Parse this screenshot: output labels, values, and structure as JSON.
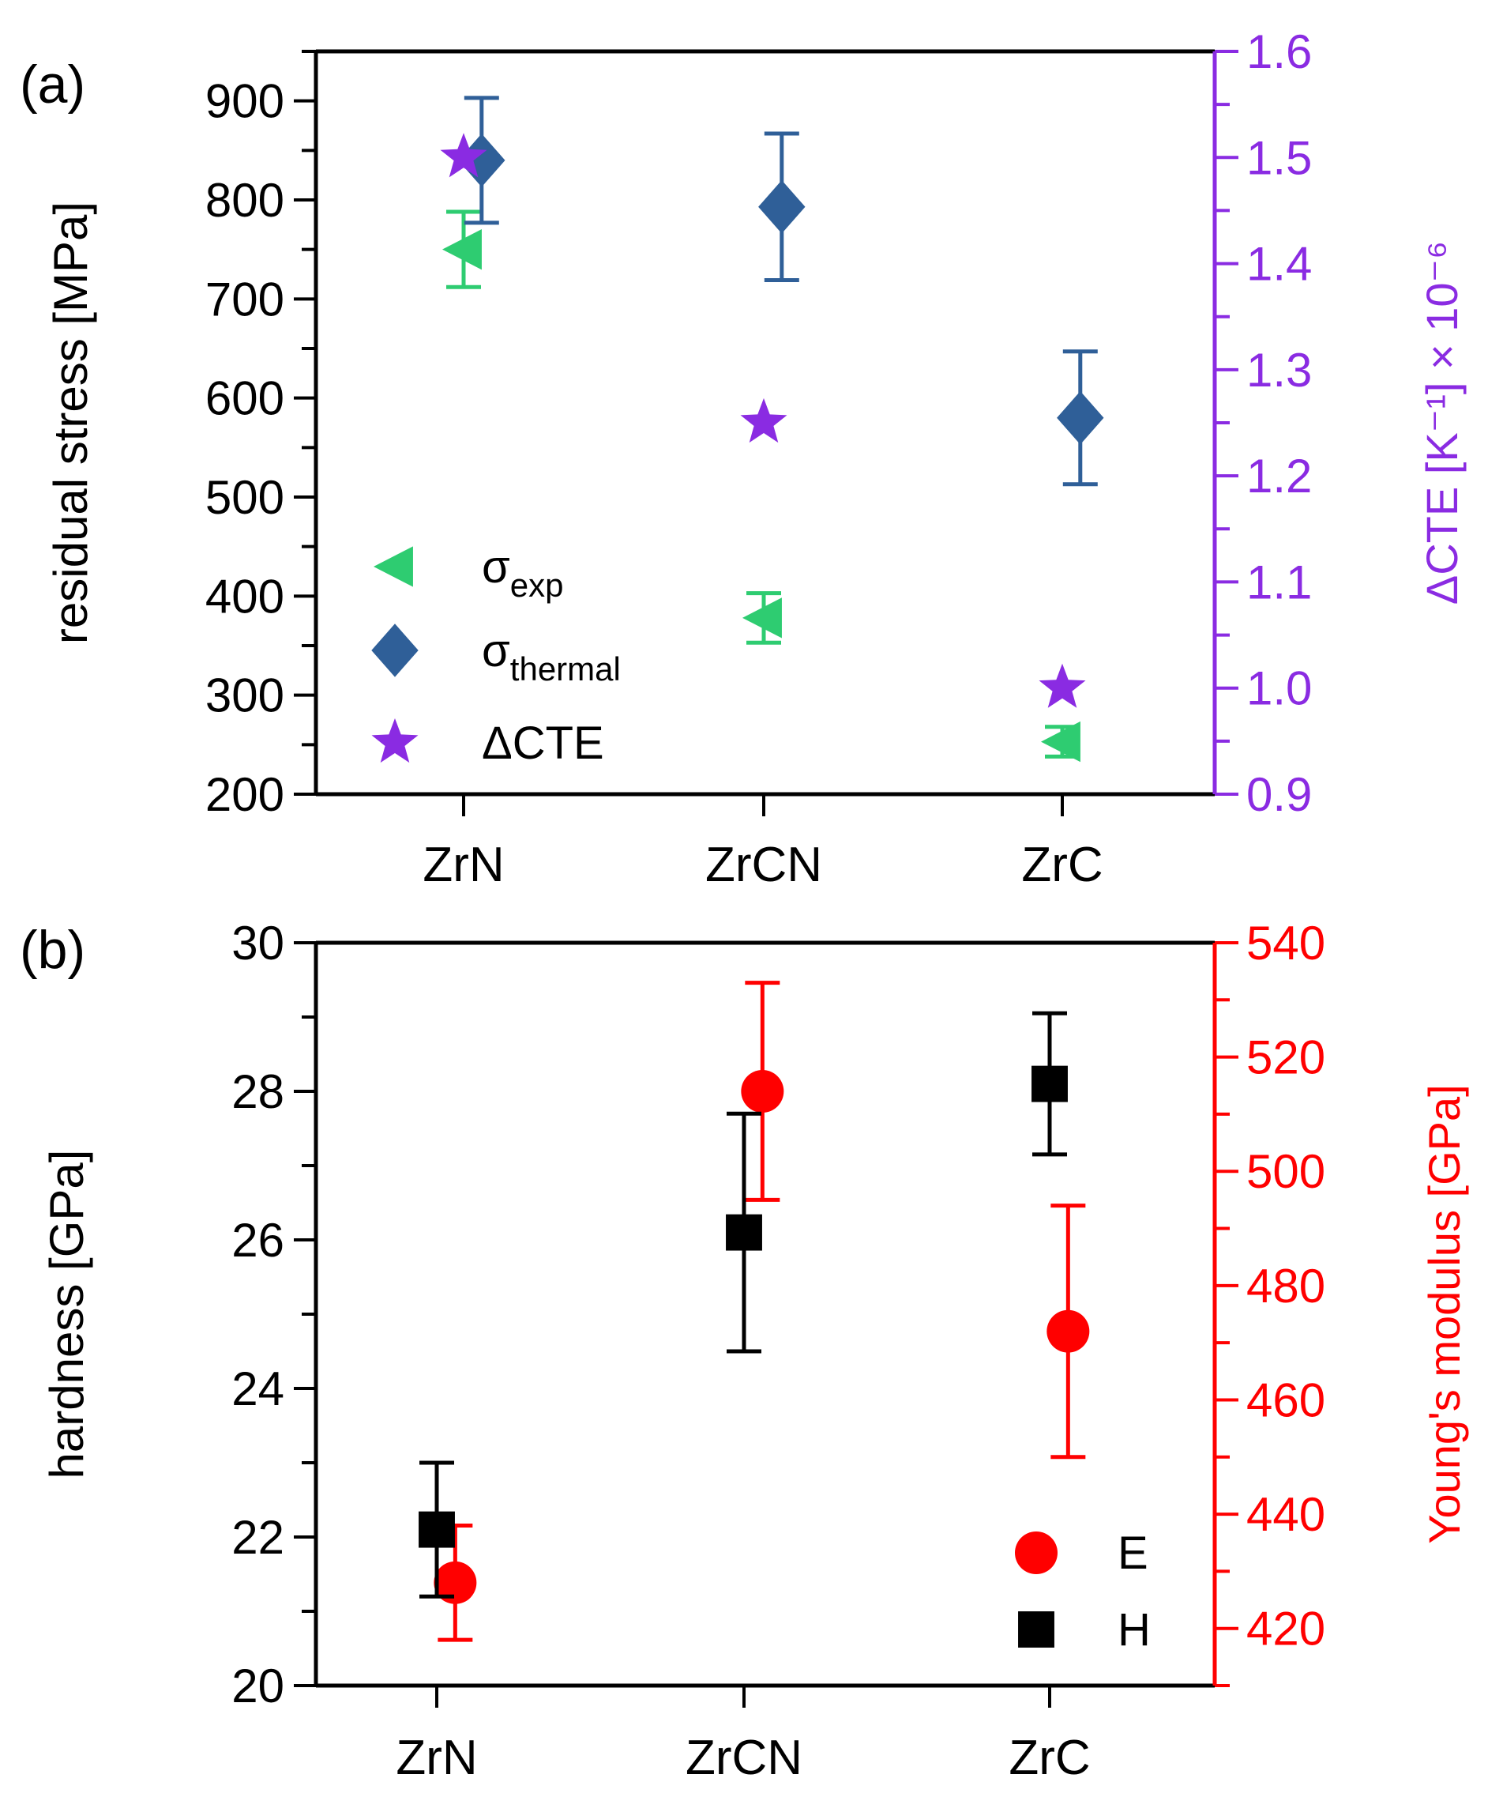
{
  "colors": {
    "axis": "#000000",
    "exp": "#2ECC71",
    "thermal": "#2F5F98",
    "cte": "#8A2BE2",
    "modulus": "#FF0000",
    "hardness": "#000000"
  },
  "chart_data": [
    {
      "type": "scatter",
      "panel_label": "(a)",
      "categories": [
        "ZrN",
        "ZrCN",
        "ZrC"
      ],
      "ylabel": "residual stress [MPa]",
      "ylim": [
        200,
        950
      ],
      "yticks": [
        "200",
        "300",
        "400",
        "500",
        "600",
        "700",
        "800",
        "900"
      ],
      "y2label": "ΔCTE [K⁻¹] × 10⁻⁶",
      "y2lim": [
        0.9,
        1.6
      ],
      "y2ticks": [
        "0.9",
        "1.0",
        "1.1",
        "1.2",
        "1.3",
        "1.4",
        "1.5",
        "1.6"
      ],
      "series": [
        {
          "name": "σexp",
          "sym": "σ",
          "sub": "exp",
          "axis": "left",
          "marker": "triangle-left",
          "color": "#2ECC71",
          "offset": 0,
          "values": [
            750,
            378,
            253
          ],
          "err": [
            38,
            25,
            15
          ]
        },
        {
          "name": "σthermal",
          "sym": "σ",
          "sub": "thermal",
          "axis": "left",
          "marker": "diamond",
          "color": "#2F5F98",
          "offset": 0.2,
          "values": [
            840,
            793,
            580
          ],
          "err": [
            63,
            74,
            67
          ]
        },
        {
          "name": "ΔCTE",
          "sym": "ΔCTE",
          "sub": "",
          "axis": "right",
          "marker": "star",
          "color": "#8A2BE2",
          "offset": 0,
          "values": [
            1.5,
            1.25,
            1.0
          ],
          "err": [
            0,
            0,
            0
          ]
        }
      ]
    },
    {
      "type": "scatter",
      "panel_label": "(b)",
      "categories": [
        "ZrN",
        "ZrCN",
        "ZrC"
      ],
      "ylabel": "hardness [GPa]",
      "ylim": [
        20,
        30
      ],
      "yticks": [
        "20",
        "22",
        "24",
        "26",
        "28",
        "30"
      ],
      "y2label": "Young's modulus [GPa]",
      "y2lim": [
        410,
        540
      ],
      "y2ticks": [
        "420",
        "440",
        "460",
        "480",
        "500",
        "520",
        "540"
      ],
      "series": [
        {
          "name": "E",
          "sym": "E",
          "sub": "",
          "axis": "right",
          "marker": "circle",
          "color": "#FF0000",
          "offset": 0.2,
          "values": [
            428,
            514,
            472
          ],
          "err": [
            10,
            19,
            22
          ]
        },
        {
          "name": "H",
          "sym": "H",
          "sub": "",
          "axis": "left",
          "marker": "square",
          "color": "#000000",
          "offset": 0,
          "values": [
            22.1,
            26.1,
            28.1
          ],
          "err": [
            0.9,
            1.6,
            0.95
          ]
        }
      ]
    }
  ]
}
